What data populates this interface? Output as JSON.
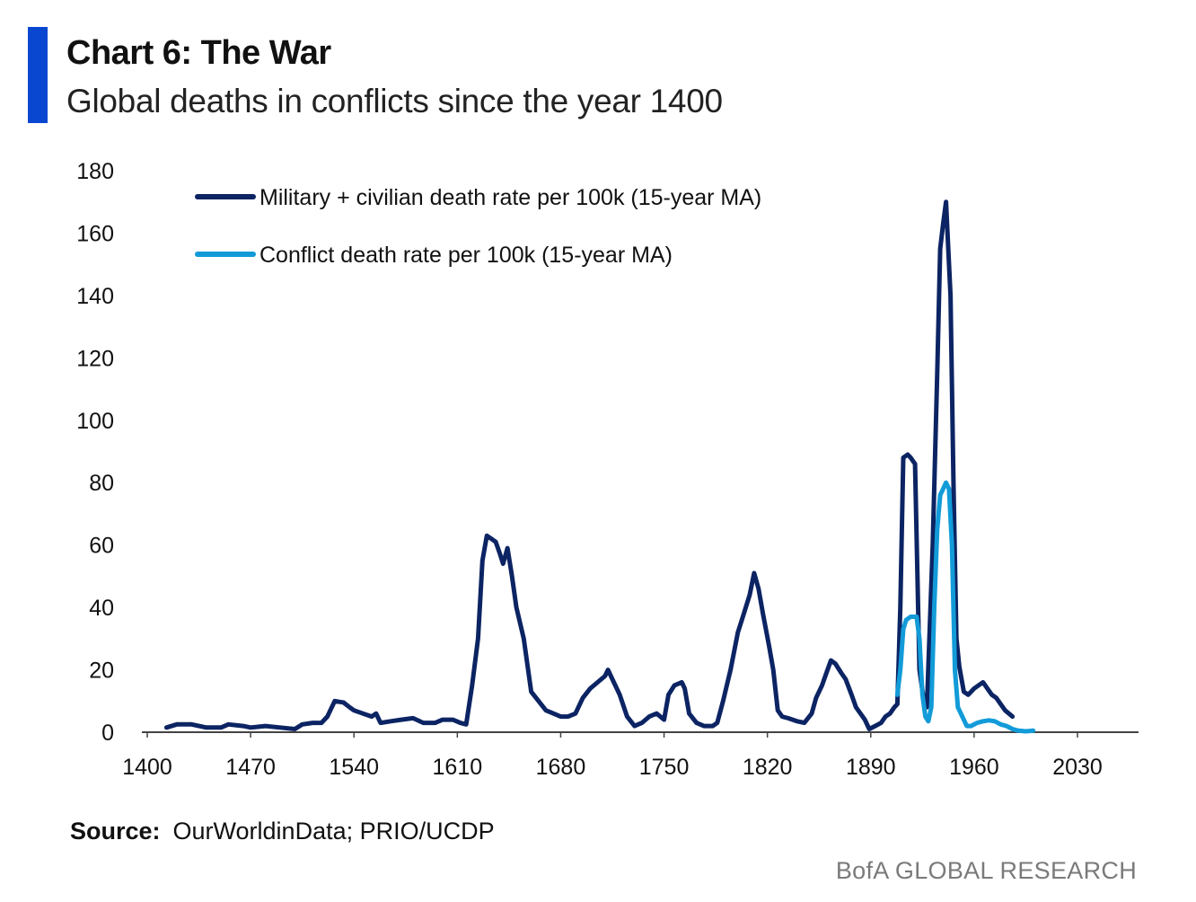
{
  "header": {
    "title": "Chart 6: The War",
    "subtitle": "Global deaths in conflicts since the year 1400"
  },
  "footer": {
    "source_label": "Source:",
    "source_text": "OurWorldinData; PRIO/UCDP",
    "brand": "BofA GLOBAL RESEARCH"
  },
  "colors": {
    "accent": "#0a47d1",
    "series1": "#0c2463",
    "series2": "#129bd8"
  },
  "chart_data": {
    "type": "line",
    "title": "Global deaths in conflicts since the year 1400",
    "xlabel": "",
    "ylabel": "",
    "xlim": [
      1400,
      2065
    ],
    "ylim": [
      0,
      180
    ],
    "xticks": [
      1400,
      1470,
      1540,
      1610,
      1680,
      1750,
      1820,
      1890,
      1960,
      2030
    ],
    "yticks": [
      0,
      20,
      40,
      60,
      80,
      100,
      120,
      140,
      160,
      180
    ],
    "legend_position": "top-left",
    "grid": false,
    "series": [
      {
        "name": "Military + civilian death rate per 100k (15-year MA)",
        "color": "#0c2463",
        "points": [
          [
            1413,
            1.5
          ],
          [
            1420,
            2.5
          ],
          [
            1430,
            2.5
          ],
          [
            1440,
            1.5
          ],
          [
            1450,
            1.5
          ],
          [
            1455,
            2.5
          ],
          [
            1465,
            2
          ],
          [
            1470,
            1.5
          ],
          [
            1480,
            2
          ],
          [
            1490,
            1.5
          ],
          [
            1500,
            1
          ],
          [
            1505,
            2.5
          ],
          [
            1512,
            3
          ],
          [
            1518,
            3
          ],
          [
            1522,
            5
          ],
          [
            1527,
            10
          ],
          [
            1533,
            9.5
          ],
          [
            1537,
            8
          ],
          [
            1540,
            7
          ],
          [
            1546,
            6
          ],
          [
            1552,
            5
          ],
          [
            1555,
            6
          ],
          [
            1558,
            3
          ],
          [
            1565,
            3.5
          ],
          [
            1572,
            4
          ],
          [
            1580,
            4.5
          ],
          [
            1587,
            3
          ],
          [
            1595,
            3
          ],
          [
            1600,
            4
          ],
          [
            1607,
            4
          ],
          [
            1612,
            3
          ],
          [
            1616,
            2.5
          ],
          [
            1620,
            15
          ],
          [
            1624,
            30
          ],
          [
            1627,
            55
          ],
          [
            1630,
            63
          ],
          [
            1633,
            62
          ],
          [
            1636,
            61
          ],
          [
            1639,
            57
          ],
          [
            1641,
            54
          ],
          [
            1644,
            59
          ],
          [
            1647,
            50
          ],
          [
            1650,
            40
          ],
          [
            1655,
            30
          ],
          [
            1660,
            13
          ],
          [
            1665,
            10
          ],
          [
            1670,
            7
          ],
          [
            1680,
            5
          ],
          [
            1685,
            5
          ],
          [
            1690,
            6
          ],
          [
            1695,
            11
          ],
          [
            1700,
            14
          ],
          [
            1705,
            16
          ],
          [
            1710,
            18
          ],
          [
            1712,
            20
          ],
          [
            1715,
            17
          ],
          [
            1720,
            12
          ],
          [
            1725,
            5
          ],
          [
            1730,
            2
          ],
          [
            1735,
            3
          ],
          [
            1740,
            5
          ],
          [
            1745,
            6
          ],
          [
            1750,
            4
          ],
          [
            1753,
            12
          ],
          [
            1757,
            15
          ],
          [
            1762,
            16
          ],
          [
            1764,
            14
          ],
          [
            1767,
            6
          ],
          [
            1772,
            3
          ],
          [
            1777,
            2
          ],
          [
            1783,
            2
          ],
          [
            1786,
            3
          ],
          [
            1790,
            10
          ],
          [
            1795,
            20
          ],
          [
            1800,
            32
          ],
          [
            1804,
            38
          ],
          [
            1808,
            44
          ],
          [
            1811,
            51
          ],
          [
            1814,
            46
          ],
          [
            1817,
            38
          ],
          [
            1821,
            28
          ],
          [
            1824,
            20
          ],
          [
            1827,
            7
          ],
          [
            1830,
            5
          ],
          [
            1834,
            4.5
          ],
          [
            1840,
            3.5
          ],
          [
            1845,
            3
          ],
          [
            1850,
            6
          ],
          [
            1853,
            11
          ],
          [
            1857,
            15
          ],
          [
            1860,
            19
          ],
          [
            1863,
            23
          ],
          [
            1866,
            22
          ],
          [
            1870,
            19
          ],
          [
            1873,
            17
          ],
          [
            1877,
            12
          ],
          [
            1880,
            8
          ],
          [
            1883,
            6
          ],
          [
            1886,
            4
          ],
          [
            1889,
            1
          ],
          [
            1893,
            2
          ],
          [
            1897,
            3
          ],
          [
            1900,
            5
          ],
          [
            1903,
            6
          ],
          [
            1906,
            8
          ],
          [
            1908,
            9
          ],
          [
            1910,
            40
          ],
          [
            1912,
            88
          ],
          [
            1915,
            89
          ],
          [
            1917,
            88
          ],
          [
            1920,
            86
          ],
          [
            1923,
            20
          ],
          [
            1926,
            10
          ],
          [
            1928,
            8
          ],
          [
            1932,
            60
          ],
          [
            1935,
            115
          ],
          [
            1937,
            155
          ],
          [
            1939,
            163
          ],
          [
            1941,
            170
          ],
          [
            1944,
            140
          ],
          [
            1946,
            80
          ],
          [
            1948,
            30
          ],
          [
            1950,
            21
          ],
          [
            1953,
            13
          ],
          [
            1956,
            12
          ],
          [
            1960,
            14
          ],
          [
            1963,
            15
          ],
          [
            1966,
            16
          ],
          [
            1969,
            14
          ],
          [
            1972,
            12
          ],
          [
            1975,
            11
          ],
          [
            1978,
            9
          ],
          [
            1981,
            7
          ],
          [
            1986,
            5
          ]
        ]
      },
      {
        "name": "Conflict death rate per 100k (15-year MA)",
        "color": "#129bd8",
        "points": [
          [
            1908,
            12
          ],
          [
            1910,
            20
          ],
          [
            1912,
            33
          ],
          [
            1914,
            36
          ],
          [
            1917,
            37
          ],
          [
            1921,
            37
          ],
          [
            1923,
            30
          ],
          [
            1925,
            12
          ],
          [
            1927,
            5
          ],
          [
            1929,
            3.5
          ],
          [
            1931,
            8
          ],
          [
            1933,
            40
          ],
          [
            1935,
            65
          ],
          [
            1937,
            76
          ],
          [
            1939,
            78
          ],
          [
            1941,
            80
          ],
          [
            1943,
            78
          ],
          [
            1945,
            60
          ],
          [
            1947,
            20
          ],
          [
            1949,
            8
          ],
          [
            1952,
            5
          ],
          [
            1955,
            2
          ],
          [
            1958,
            2
          ],
          [
            1962,
            3
          ],
          [
            1966,
            3.5
          ],
          [
            1970,
            3.8
          ],
          [
            1974,
            3.5
          ],
          [
            1978,
            2.5
          ],
          [
            1982,
            2
          ],
          [
            1986,
            1
          ],
          [
            1990,
            0.5
          ],
          [
            1995,
            0.3
          ],
          [
            2000,
            0.5
          ]
        ]
      }
    ]
  }
}
